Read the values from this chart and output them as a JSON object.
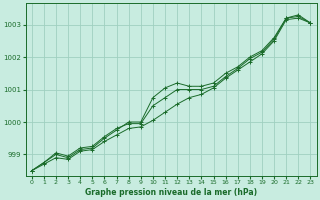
{
  "title": "Graphe pression niveau de la mer (hPa)",
  "bg_color": "#c8ece0",
  "grid_color": "#a0d0c0",
  "line_color": "#1a6b2a",
  "xlim": [
    -0.5,
    23.5
  ],
  "ylim": [
    998.35,
    1003.65
  ],
  "xticks": [
    0,
    1,
    2,
    3,
    4,
    5,
    6,
    7,
    8,
    9,
    10,
    11,
    12,
    13,
    14,
    15,
    16,
    17,
    18,
    19,
    20,
    21,
    22,
    23
  ],
  "yticks": [
    999,
    1000,
    1001,
    1002,
    1003
  ],
  "series": [
    [
      998.5,
      998.7,
      998.9,
      998.85,
      999.1,
      999.15,
      999.4,
      999.6,
      999.8,
      999.85,
      1000.05,
      1000.3,
      1000.55,
      1000.75,
      1000.85,
      1001.05,
      1001.35,
      1001.6,
      1001.85,
      1002.1,
      1002.5,
      1003.15,
      1003.2,
      1003.05
    ],
    [
      998.5,
      998.75,
      999.0,
      998.9,
      999.15,
      999.2,
      999.5,
      999.75,
      1000.0,
      1000.0,
      1000.75,
      1001.05,
      1001.2,
      1001.1,
      1001.1,
      1001.2,
      1001.5,
      1001.7,
      1002.0,
      1002.2,
      1002.6,
      1003.2,
      1003.3,
      1003.05
    ],
    [
      998.5,
      998.75,
      999.05,
      998.95,
      999.2,
      999.25,
      999.55,
      999.8,
      999.95,
      999.95,
      1000.5,
      1000.75,
      1001.0,
      1001.0,
      1001.0,
      1001.1,
      1001.4,
      1001.65,
      1001.95,
      1002.15,
      1002.55,
      1003.2,
      1003.25,
      1003.05
    ]
  ],
  "figsize": [
    3.2,
    2.0
  ],
  "dpi": 100
}
